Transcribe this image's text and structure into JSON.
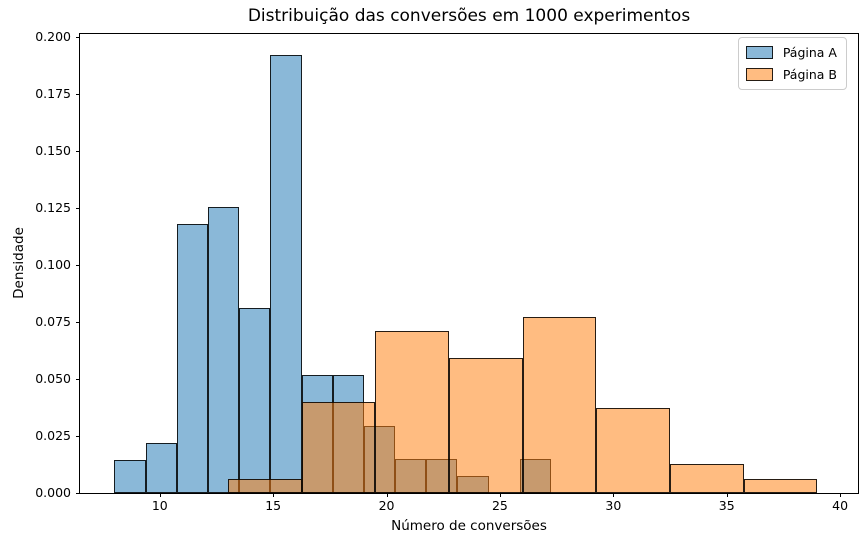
{
  "chart_data": {
    "type": "bar",
    "variant": "overlapping-density-histogram",
    "title": "Distribuição das conversões em 1000 experimentos",
    "xlabel": "Número de conversões",
    "ylabel": "Densidade",
    "xlim": [
      6.48,
      40.79
    ],
    "ylim": [
      0,
      0.2011
    ],
    "xticks": [
      10,
      15,
      20,
      25,
      30,
      35,
      40
    ],
    "ytick_labels": [
      "0.000",
      "0.025",
      "0.050",
      "0.075",
      "0.100",
      "0.125",
      "0.150",
      "0.175",
      "0.200"
    ],
    "grid": false,
    "legend_position": "upper-right",
    "bar_edge_color": "rgba(0,0,0,0.85)",
    "series": [
      {
        "name": "Página A",
        "id": "pagina-a",
        "base_color": "#1f77b4",
        "fill_color": "rgba(31,119,180,0.52)",
        "bin_start": 8,
        "bin_width": 1.375,
        "densities": [
          0.0145,
          0.0218,
          0.1177,
          0.1254,
          0.081,
          0.1919,
          0.0517,
          0.0517,
          0.0293,
          0.0148,
          0.0148,
          0.0073,
          0.0,
          0.0148
        ]
      },
      {
        "name": "Página B",
        "id": "pagina-b",
        "base_color": "#ff7f0e",
        "fill_color": "rgba(255,127,14,0.52)",
        "bin_start": 13,
        "bin_width": 3.25,
        "densities": [
          0.0062,
          0.04,
          0.0708,
          0.0592,
          0.0769,
          0.0371,
          0.0127,
          0.0062
        ]
      }
    ]
  }
}
